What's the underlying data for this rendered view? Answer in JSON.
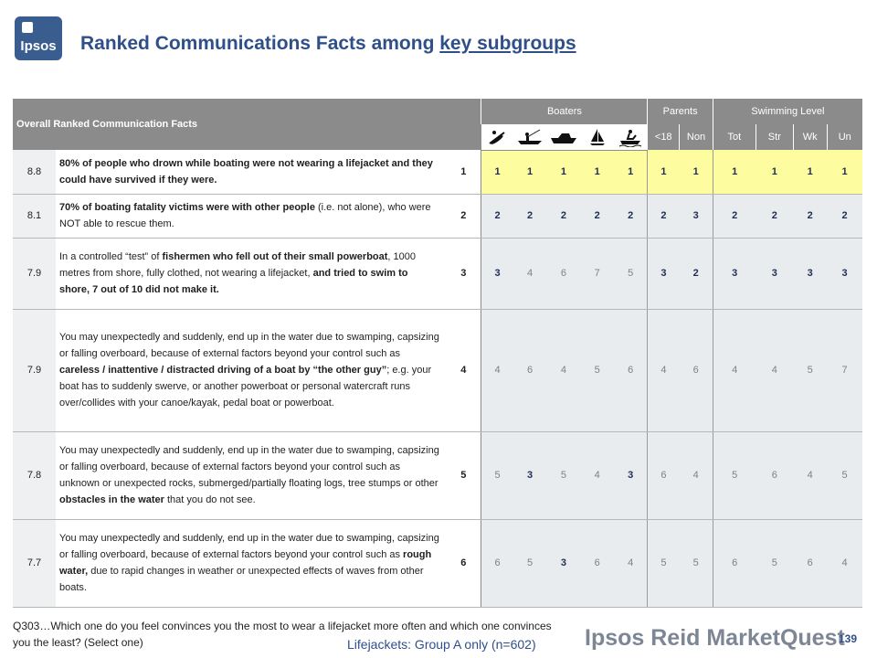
{
  "header": {
    "logo_text": "Ipsos",
    "title_main": "Ranked Communications Facts among ",
    "title_link": "key subgroups"
  },
  "table": {
    "title": "Overall Ranked Communication Facts",
    "groups": {
      "boaters": "Boaters",
      "parents": "Parents",
      "swimming": "Swimming Level"
    },
    "boater_icons": [
      "kayak-icon",
      "fishing-boat-icon",
      "powerboat-icon",
      "sailboat-icon",
      "personal-watercraft-icon"
    ],
    "sub_headers": [
      "<18",
      "Non",
      "Tot",
      "Str",
      "Wk",
      "Un"
    ],
    "rows": [
      {
        "score": "8.8",
        "parts": [
          {
            "t": "80% of people who drown while boating were not wearing a lifejacket and they could have survived if they were.",
            "b": true
          }
        ],
        "rank": "1",
        "values": [
          "1",
          "1",
          "1",
          "1",
          "1",
          "1",
          "1",
          "1",
          "1",
          "1",
          "1"
        ],
        "bold": [
          1,
          1,
          1,
          1,
          1,
          1,
          1,
          1,
          1,
          1,
          1
        ],
        "highlight": true
      },
      {
        "score": "8.1",
        "parts": [
          {
            "t": "70% of boating fatality victims were with other people",
            "b": true
          },
          {
            "t": " (i.e. not alone), who were NOT able to rescue them.",
            "b": false
          }
        ],
        "rank": "2",
        "values": [
          "2",
          "2",
          "2",
          "2",
          "2",
          "2",
          "3",
          "2",
          "2",
          "2",
          "2"
        ],
        "bold": [
          1,
          1,
          1,
          1,
          1,
          1,
          1,
          1,
          1,
          1,
          1
        ],
        "highlight": false
      },
      {
        "score": "7.9",
        "parts": [
          {
            "t": "In a controlled “test” of ",
            "b": false
          },
          {
            "t": "fishermen who fell out of their small powerboat",
            "b": true
          },
          {
            "t": ", 1000 metres from shore, fully clothed, not wearing a lifejacket, ",
            "b": false
          },
          {
            "t": "and tried to swim to shore, 7 out of 10 did not make it.",
            "b": true
          }
        ],
        "rank": "3",
        "values": [
          "3",
          "4",
          "6",
          "7",
          "5",
          "3",
          "2",
          "3",
          "3",
          "3",
          "3"
        ],
        "bold": [
          1,
          0,
          0,
          0,
          0,
          1,
          1,
          1,
          1,
          1,
          1
        ],
        "highlight": false
      },
      {
        "score": "7.9",
        "parts": [
          {
            "t": "You may unexpectedly and suddenly, end up in the water due to swamping, capsizing or falling overboard, because of external factors beyond your control such as ",
            "b": false
          },
          {
            "t": "careless / inattentive / distracted driving of a boat by “the other guy”",
            "b": true
          },
          {
            "t": "; e.g. your boat has to suddenly swerve, or another powerboat or personal watercraft runs over/collides with your canoe/kayak, pedal boat or powerboat.",
            "b": false
          }
        ],
        "rank": "4",
        "values": [
          "4",
          "6",
          "4",
          "5",
          "6",
          "4",
          "6",
          "4",
          "4",
          "5",
          "7"
        ],
        "bold": [
          0,
          0,
          0,
          0,
          0,
          0,
          0,
          0,
          0,
          0,
          0
        ],
        "highlight": false
      },
      {
        "score": "7.8",
        "parts": [
          {
            "t": "You may unexpectedly and suddenly, end up in the water due to swamping, capsizing or falling overboard, because of external factors beyond your control such as unknown or unexpected rocks, submerged/partially floating logs, tree stumps or other ",
            "b": false
          },
          {
            "t": "obstacles in the water",
            "b": true
          },
          {
            "t": " that you do not see.",
            "b": false
          }
        ],
        "rank": "5",
        "values": [
          "5",
          "3",
          "5",
          "4",
          "3",
          "6",
          "4",
          "5",
          "6",
          "4",
          "5"
        ],
        "bold": [
          0,
          1,
          0,
          0,
          1,
          0,
          0,
          0,
          0,
          0,
          0
        ],
        "highlight": false
      },
      {
        "score": "7.7",
        "parts": [
          {
            "t": "You may unexpectedly and suddenly, end up in the water due to swamping, capsizing or falling overboard, because of external factors beyond your control such as ",
            "b": false
          },
          {
            "t": "rough water,",
            "b": true
          },
          {
            "t": " due to rapid changes in weather or unexpected effects of waves from other boats.",
            "b": false
          }
        ],
        "rank": "6",
        "values": [
          "6",
          "5",
          "3",
          "6",
          "4",
          "5",
          "5",
          "6",
          "5",
          "6",
          "4"
        ],
        "bold": [
          0,
          0,
          1,
          0,
          0,
          0,
          0,
          0,
          0,
          0,
          0
        ],
        "highlight": false
      }
    ]
  },
  "footer": {
    "question": "Q303…Which one do you feel convinces you the most to wear a lifejacket more often and which one convinces you the least?  (Select one)",
    "base": "Lifejackets: Group A only (n=602)",
    "brand": "Ipsos Reid MarketQuest",
    "page": "139"
  }
}
